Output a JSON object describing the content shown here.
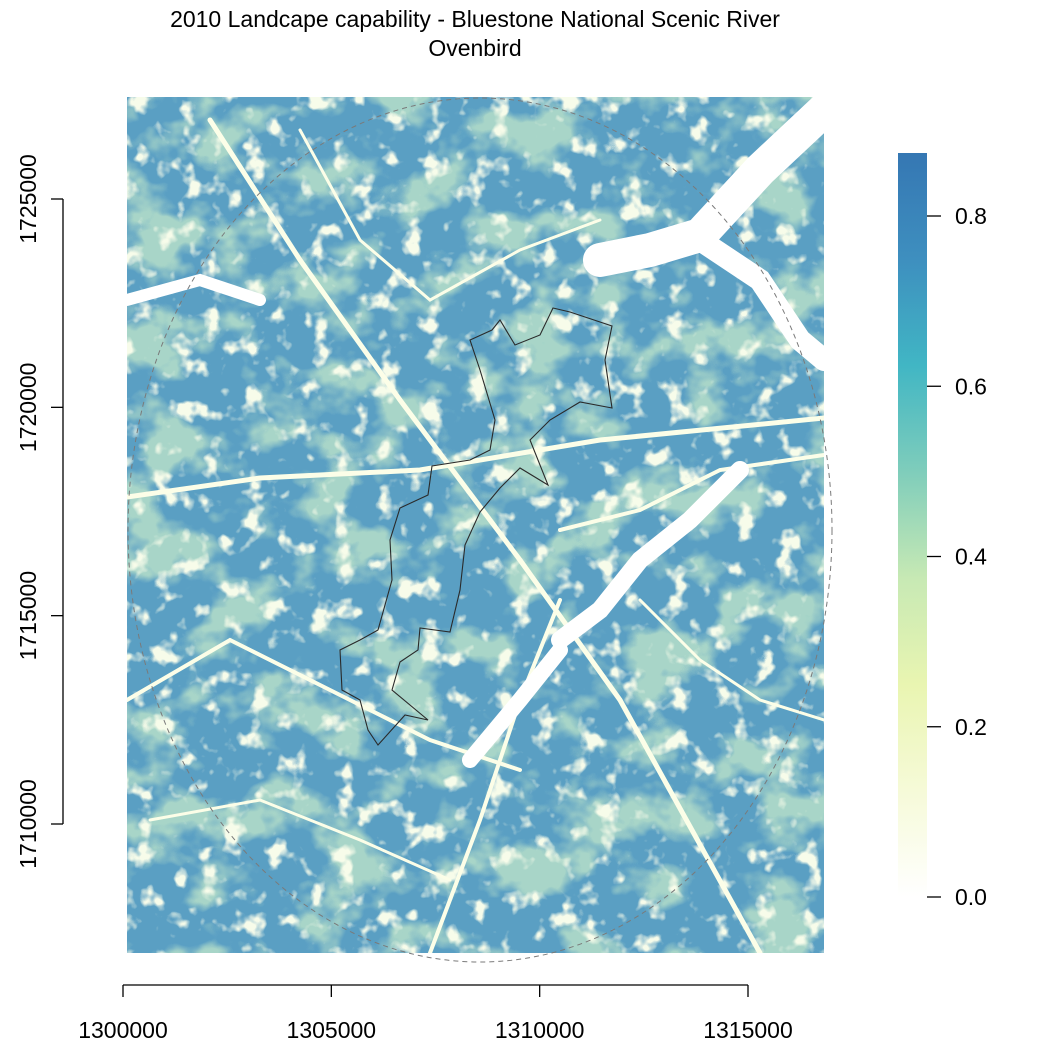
{
  "title": {
    "line1": "2010 Landcape capability - Bluestone National Scenic River",
    "line2": "Ovenbird"
  },
  "map": {
    "x_axis": {
      "ticks": [
        {
          "value": 1300000,
          "label": "1300000"
        },
        {
          "value": 1305000,
          "label": "1305000"
        },
        {
          "value": 1310000,
          "label": "1310000"
        },
        {
          "value": 1315000,
          "label": "1315000"
        }
      ],
      "range": [
        1300100,
        1316800
      ]
    },
    "y_axis": {
      "ticks": [
        {
          "value": 1710000,
          "label": "1710000"
        },
        {
          "value": 1715000,
          "label": "1715000"
        },
        {
          "value": 1720000,
          "label": "1720000"
        },
        {
          "value": 1725000,
          "label": "1725000"
        }
      ],
      "range": [
        1707200,
        1727800
      ]
    },
    "legend": {
      "placement": "right",
      "range": [
        0.0,
        0.87
      ],
      "ticks": [
        {
          "value": 0.0,
          "label": "0.0"
        },
        {
          "value": 0.2,
          "label": "0.2"
        },
        {
          "value": 0.4,
          "label": "0.4"
        },
        {
          "value": 0.6,
          "label": "0.6"
        },
        {
          "value": 0.8,
          "label": "0.8"
        }
      ],
      "color_stops": [
        "#ffffff",
        "#f6fad8",
        "#e9f5b1",
        "#c7e9b4",
        "#7fcdbb",
        "#41b6c4",
        "#3e8fbf",
        "#3577b3"
      ]
    }
  }
}
